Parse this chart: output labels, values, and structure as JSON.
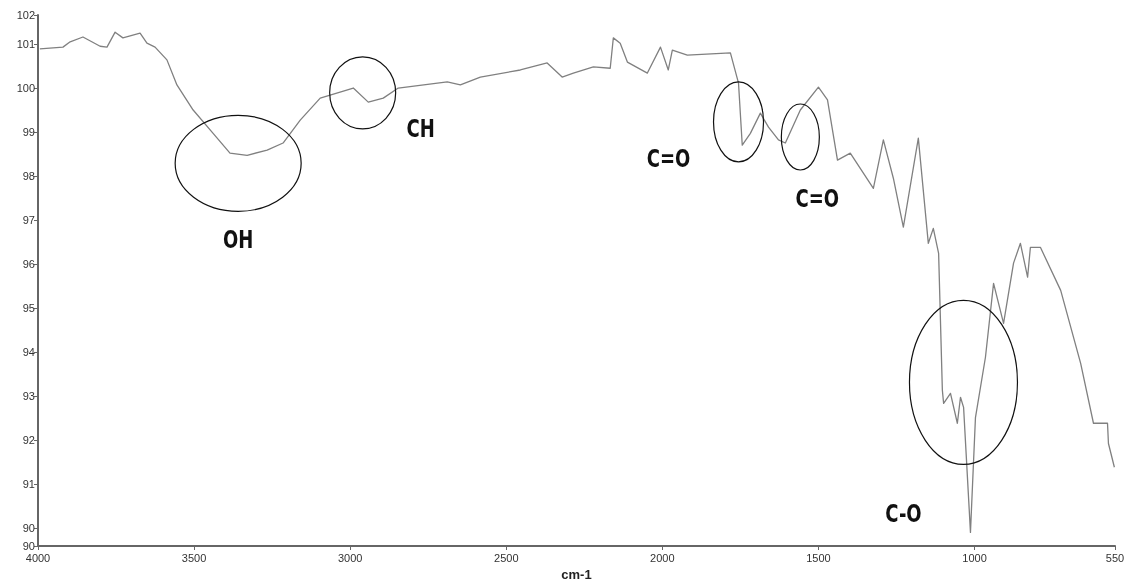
{
  "chart_data": {
    "type": "line",
    "xlabel": "cm-1",
    "xlim": [
      4000,
      550
    ],
    "xticks": [
      4000,
      3500,
      3000,
      2500,
      2000,
      1500,
      1000,
      550
    ],
    "ylim": [
      89.59,
      101.66
    ],
    "yticks": [
      {
        "value": 101.66,
        "label": "102"
      },
      101,
      100,
      99,
      98,
      97,
      96,
      95,
      94,
      93,
      92,
      91,
      90,
      {
        "value": 89.59,
        "label": "90"
      }
    ],
    "grid": false,
    "marker": "none",
    "line_style": "solid",
    "series": [
      {
        "color": "#808080",
        "x": [
          3994,
          3920,
          3897,
          3856,
          3801,
          3779,
          3753,
          3728,
          3673,
          3651,
          3625,
          3587,
          3555,
          3503,
          3439,
          3385,
          3330,
          3266,
          3215,
          3160,
          3096,
          2990,
          2942,
          2894,
          2846,
          2689,
          2647,
          2583,
          2455,
          2369,
          2321,
          2285,
          2221,
          2167,
          2157,
          2135,
          2112,
          2048,
          2006,
          1981,
          1968,
          1920,
          1782,
          1756,
          1744,
          1718,
          1686,
          1660,
          1628,
          1606,
          1558,
          1500,
          1471,
          1439,
          1398,
          1324,
          1292,
          1260,
          1228,
          1180,
          1148,
          1132,
          1115,
          1103,
          1099,
          1077,
          1055,
          1045,
          1035,
          1013,
          997,
          965,
          939,
          907,
          875,
          853,
          830,
          821,
          789,
          724,
          660,
          619,
          574,
          571,
          552
        ],
        "values": [
          100.89,
          100.93,
          101.05,
          101.16,
          100.95,
          100.93,
          101.27,
          101.14,
          101.25,
          101.02,
          100.93,
          100.64,
          100.07,
          99.5,
          98.97,
          98.52,
          98.47,
          98.59,
          98.75,
          99.27,
          99.77,
          100.0,
          99.68,
          99.77,
          100.0,
          100.14,
          100.07,
          100.25,
          100.41,
          100.57,
          100.25,
          100.34,
          100.48,
          100.45,
          101.14,
          101.02,
          100.59,
          100.34,
          100.93,
          100.41,
          100.86,
          100.75,
          100.8,
          100.11,
          98.7,
          98.97,
          99.43,
          99.11,
          98.82,
          98.75,
          99.5,
          100.02,
          99.73,
          98.36,
          98.52,
          97.72,
          98.82,
          97.95,
          96.84,
          98.86,
          96.47,
          96.81,
          96.24,
          93.13,
          92.83,
          93.06,
          92.38,
          92.97,
          92.74,
          89.9,
          92.51,
          93.88,
          95.56,
          94.65,
          96.02,
          96.47,
          95.7,
          96.38,
          96.38,
          95.4,
          93.74,
          92.38,
          92.38,
          91.92,
          91.38
        ]
      }
    ],
    "annotations": [
      {
        "text": "OH",
        "x": 3330,
        "y": 98.47
      },
      {
        "text": "CH",
        "x": 2960,
        "y": 99.89
      },
      {
        "text": "C=O",
        "x": 1756,
        "y": 99.23
      },
      {
        "text": "C=O",
        "x": 1606,
        "y": 98.75
      },
      {
        "text": "C-O",
        "x": 1013,
        "y": 89.9
      }
    ]
  }
}
